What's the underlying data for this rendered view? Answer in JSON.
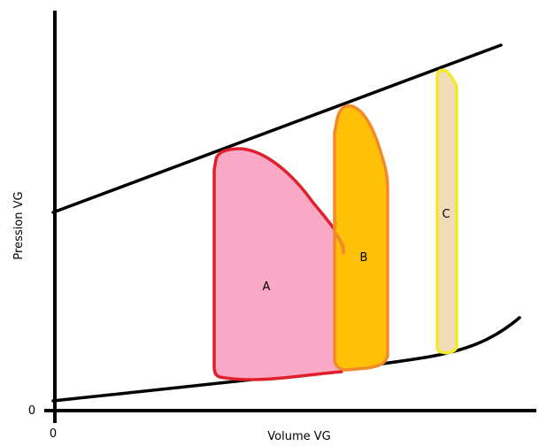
{
  "diagram": {
    "y_axis_label": "Pression VG",
    "x_axis_label": "Volume VG",
    "origin_x_label": "0",
    "origin_y_label": "0"
  },
  "loops": [
    {
      "label": "A",
      "fill": "#f9a8c6",
      "stroke": "#e0202c"
    },
    {
      "label": "B",
      "fill": "#ffc107",
      "stroke": "#f4892b"
    },
    {
      "label": "C",
      "fill": "#f0ddb8",
      "stroke": "#f5e92a"
    }
  ],
  "curves": {
    "color": "#000000"
  }
}
